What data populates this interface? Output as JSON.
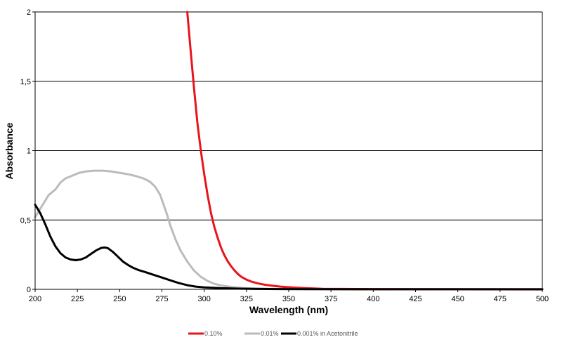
{
  "chart_data": {
    "type": "line",
    "xlabel": "Wavelength (nm)",
    "ylabel": "Absorbance",
    "xlim": [
      200,
      500
    ],
    "ylim": [
      0,
      2
    ],
    "x_ticks": [
      "200",
      "225",
      "250",
      "275",
      "300",
      "325",
      "350",
      "375",
      "400",
      "425",
      "450",
      "475",
      "500"
    ],
    "y_ticks": [
      "0",
      "0,5",
      "1",
      "1,5",
      "2"
    ],
    "grid": "horizontal",
    "legend_position": "bottom",
    "series": [
      {
        "name": "0.10%",
        "color": "#e8141c",
        "points": [
          [
            290,
            2.0
          ],
          [
            292,
            1.72
          ],
          [
            294,
            1.45
          ],
          [
            296,
            1.2
          ],
          [
            298,
            1.0
          ],
          [
            300,
            0.83
          ],
          [
            302,
            0.68
          ],
          [
            304,
            0.55
          ],
          [
            306,
            0.45
          ],
          [
            308,
            0.37
          ],
          [
            310,
            0.3
          ],
          [
            312,
            0.245
          ],
          [
            314,
            0.2
          ],
          [
            316,
            0.165
          ],
          [
            318,
            0.135
          ],
          [
            320,
            0.11
          ],
          [
            322,
            0.09
          ],
          [
            325,
            0.07
          ],
          [
            328,
            0.055
          ],
          [
            332,
            0.042
          ],
          [
            336,
            0.033
          ],
          [
            340,
            0.027
          ],
          [
            345,
            0.02
          ],
          [
            350,
            0.015
          ],
          [
            355,
            0.011
          ],
          [
            360,
            0.008
          ],
          [
            365,
            0.006
          ],
          [
            370,
            0.004
          ],
          [
            380,
            0.003
          ],
          [
            400,
            0.002
          ],
          [
            450,
            0.001
          ],
          [
            500,
            0.001
          ]
        ]
      },
      {
        "name": "0.01%",
        "color": "#bbbbbb",
        "points": [
          [
            200,
            0.52
          ],
          [
            202,
            0.56
          ],
          [
            205,
            0.62
          ],
          [
            208,
            0.68
          ],
          [
            212,
            0.72
          ],
          [
            215,
            0.77
          ],
          [
            218,
            0.8
          ],
          [
            222,
            0.82
          ],
          [
            226,
            0.84
          ],
          [
            230,
            0.85
          ],
          [
            235,
            0.855
          ],
          [
            240,
            0.855
          ],
          [
            245,
            0.85
          ],
          [
            250,
            0.84
          ],
          [
            255,
            0.83
          ],
          [
            260,
            0.815
          ],
          [
            264,
            0.8
          ],
          [
            268,
            0.775
          ],
          [
            271,
            0.74
          ],
          [
            274,
            0.68
          ],
          [
            276,
            0.61
          ],
          [
            278,
            0.54
          ],
          [
            280,
            0.46
          ],
          [
            283,
            0.36
          ],
          [
            286,
            0.28
          ],
          [
            290,
            0.2
          ],
          [
            294,
            0.135
          ],
          [
            298,
            0.09
          ],
          [
            302,
            0.06
          ],
          [
            306,
            0.04
          ],
          [
            310,
            0.028
          ],
          [
            316,
            0.017
          ],
          [
            322,
            0.01
          ],
          [
            330,
            0.006
          ],
          [
            340,
            0.003
          ],
          [
            360,
            0.001
          ],
          [
            400,
            0.0
          ],
          [
            500,
            0.0
          ]
        ]
      },
      {
        "name": "0.001% in Acetonitrile",
        "color": "#000000",
        "points": [
          [
            200,
            0.61
          ],
          [
            203,
            0.55
          ],
          [
            206,
            0.47
          ],
          [
            209,
            0.38
          ],
          [
            212,
            0.31
          ],
          [
            215,
            0.26
          ],
          [
            218,
            0.23
          ],
          [
            221,
            0.215
          ],
          [
            224,
            0.21
          ],
          [
            227,
            0.215
          ],
          [
            230,
            0.23
          ],
          [
            233,
            0.255
          ],
          [
            236,
            0.28
          ],
          [
            239,
            0.298
          ],
          [
            241,
            0.302
          ],
          [
            243,
            0.297
          ],
          [
            246,
            0.27
          ],
          [
            249,
            0.235
          ],
          [
            252,
            0.2
          ],
          [
            255,
            0.175
          ],
          [
            258,
            0.155
          ],
          [
            261,
            0.14
          ],
          [
            265,
            0.125
          ],
          [
            270,
            0.105
          ],
          [
            275,
            0.085
          ],
          [
            280,
            0.065
          ],
          [
            285,
            0.045
          ],
          [
            290,
            0.03
          ],
          [
            295,
            0.02
          ],
          [
            300,
            0.014
          ],
          [
            310,
            0.008
          ],
          [
            320,
            0.005
          ],
          [
            330,
            0.003
          ],
          [
            345,
            0.002
          ],
          [
            370,
            0.001
          ],
          [
            500,
            0.0
          ]
        ]
      }
    ]
  }
}
